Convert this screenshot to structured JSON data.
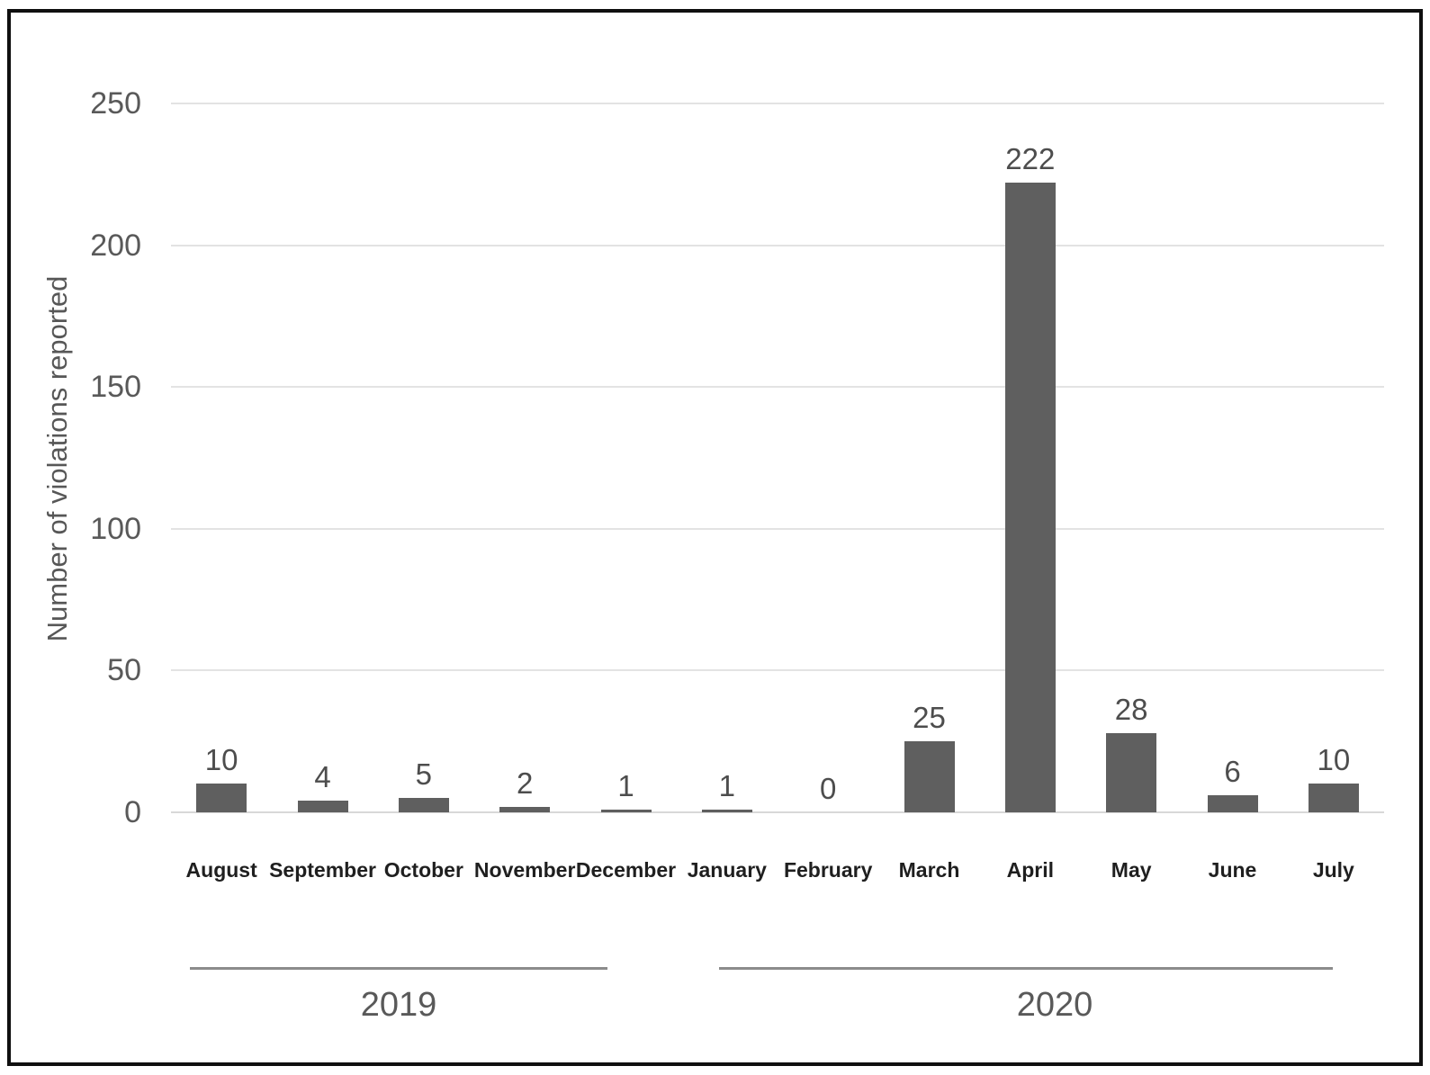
{
  "chart_data": {
    "type": "bar",
    "title": "",
    "ylabel": "Number of violations reported",
    "xlabel": "",
    "categories": [
      "August",
      "September",
      "October",
      "November",
      "December",
      "January",
      "February",
      "March",
      "April",
      "May",
      "June",
      "July"
    ],
    "values": [
      10,
      4,
      5,
      2,
      1,
      1,
      0,
      25,
      222,
      28,
      6,
      10
    ],
    "ylim": [
      0,
      250
    ],
    "yticks": [
      0,
      50,
      100,
      150,
      200,
      250
    ],
    "grid": "horizontal",
    "legend": "none",
    "value_labels_shown": true,
    "year_groups": [
      {
        "label": "2019",
        "months": [
          "August",
          "September",
          "October",
          "November",
          "December"
        ]
      },
      {
        "label": "2020",
        "months": [
          "January",
          "February",
          "March",
          "April",
          "May",
          "June",
          "July"
        ]
      }
    ]
  },
  "colors": {
    "bar": "#5f5f5f",
    "gridline": "#e3e3e3",
    "axis_text": "#595959",
    "value_text": "#4d4d4d",
    "month_text": "#1f1f1f",
    "frame_border": "#0f0f0f",
    "background": "#ffffff"
  }
}
